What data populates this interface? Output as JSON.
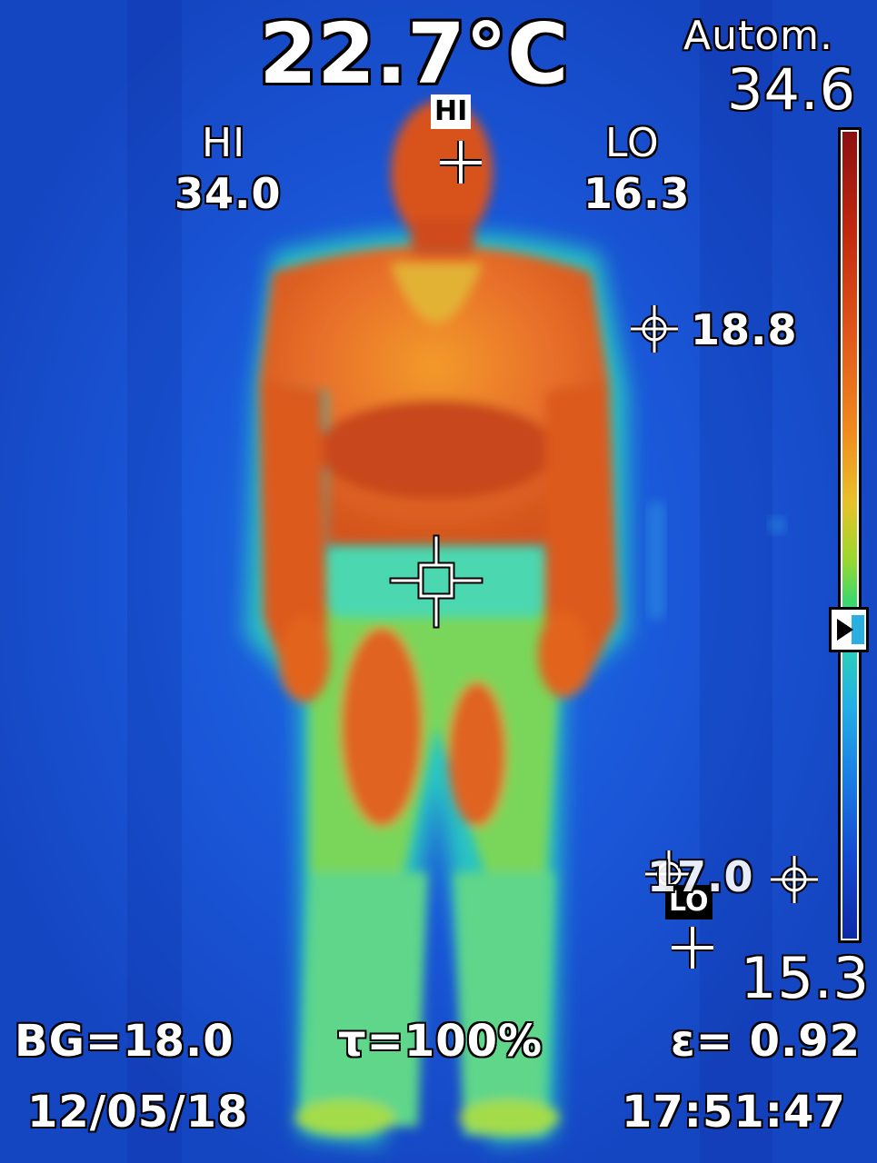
{
  "overlay": {
    "center_temperature": "22.7°C",
    "range_mode": "Autom.",
    "range_max": "34.6",
    "range_min": "15.3",
    "hi": {
      "label": "HI",
      "value": "34.0",
      "tag": "HI"
    },
    "lo": {
      "label": "LO",
      "value": "16.3",
      "tag": "LO"
    },
    "spots": [
      "18.8",
      "17.0"
    ],
    "background_temp": "BG=18.0",
    "transmission": "τ=100%",
    "emissivity": "ε= 0.92",
    "date": "12/05/18",
    "time": "17:51:47"
  },
  "palette": {
    "background": "#1a57d8",
    "scale_hot": "#8c1010",
    "scale_cold": "#0c2aa8",
    "body_warm": "#e0561a",
    "body_mid": "#3fd86a"
  },
  "icons": {
    "center_crosshair": "crosshair-box-icon",
    "hi_marker": "plus-icon",
    "lo_marker": "plus-icon",
    "spot_marker": "crosshair-circle-icon"
  }
}
